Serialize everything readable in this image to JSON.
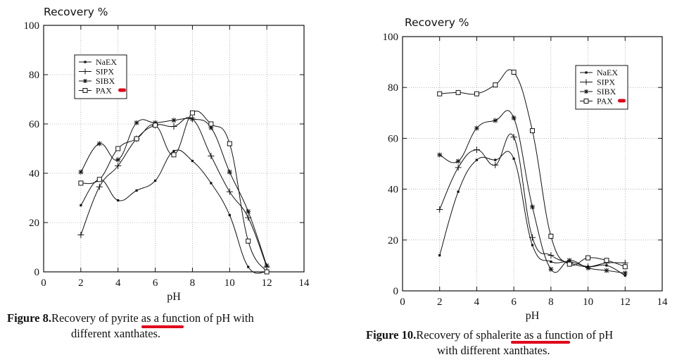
{
  "colors": {
    "line": "#111111",
    "grid": "#888888",
    "highlight": "#e0001b"
  },
  "figures": [
    {
      "caption_label": "Figure 8.",
      "caption_before": "Recovery of ",
      "caption_highlight": "pyrite",
      "caption_after": " as a function of pH with",
      "caption_line2": "different xanthates."
    },
    {
      "caption_label": "Figure 10.",
      "caption_before": "Recovery of ",
      "caption_highlight": "sphalerite",
      "caption_after": " as a function of pH",
      "caption_line2": "with different xanthates."
    }
  ],
  "chart_data": [
    {
      "type": "line",
      "title": "",
      "xlabel": "pH",
      "ylabel": "Recovery %",
      "xlim": [
        0,
        14
      ],
      "ylim": [
        0,
        100
      ],
      "xticks": [
        "0",
        "2",
        "4",
        "6",
        "8",
        "10",
        "12",
        "14"
      ],
      "yticks": [
        "0",
        "20",
        "40",
        "60",
        "80",
        "100"
      ],
      "grid": true,
      "legend_position": "top-left",
      "x": [
        2,
        3,
        4,
        5,
        6,
        7,
        8,
        9,
        10,
        11,
        12
      ],
      "series": [
        {
          "name": "NaEX",
          "marker": "dot",
          "values": [
            27,
            37.5,
            29,
            33,
            37,
            49,
            45,
            36,
            23,
            2,
            0
          ]
        },
        {
          "name": "SIPX",
          "marker": "plus",
          "values": [
            15,
            34.5,
            43,
            54,
            59.5,
            59,
            62,
            47,
            32.5,
            22,
            2
          ]
        },
        {
          "name": "SIBX",
          "marker": "asterisk",
          "values": [
            40.5,
            52,
            45.5,
            60.5,
            60.5,
            61.5,
            62,
            58.5,
            40.5,
            24.5,
            2.5
          ]
        },
        {
          "name": "PAX",
          "marker": "square",
          "values": [
            36,
            37.5,
            50,
            54,
            59.5,
            47.5,
            64.5,
            60,
            52,
            12.5,
            0
          ]
        }
      ]
    },
    {
      "type": "line",
      "title": "",
      "xlabel": "pH",
      "ylabel": "Recovery %",
      "xlim": [
        0,
        14
      ],
      "ylim": [
        0,
        100
      ],
      "xticks": [
        "0",
        "2",
        "4",
        "6",
        "8",
        "10",
        "12",
        "14"
      ],
      "yticks": [
        "0",
        "20",
        "40",
        "60",
        "80",
        "100"
      ],
      "grid": true,
      "legend_position": "top-right",
      "x": [
        2,
        3,
        4,
        5,
        6,
        7,
        8,
        9,
        10,
        11,
        12
      ],
      "series": [
        {
          "name": "NaEX",
          "marker": "dot",
          "values": [
            14,
            39,
            51.5,
            51.5,
            52,
            18,
            11.5,
            11.5,
            9.5,
            10,
            6
          ]
        },
        {
          "name": "SIPX",
          "marker": "plus",
          "values": [
            32,
            48.5,
            55.5,
            49.5,
            60.5,
            21,
            14,
            11,
            9.5,
            11,
            11
          ]
        },
        {
          "name": "SIBX",
          "marker": "asterisk",
          "values": [
            53.5,
            51,
            64,
            67,
            68,
            33,
            8.5,
            12,
            9,
            8,
            7
          ]
        },
        {
          "name": "PAX",
          "marker": "square",
          "values": [
            77.5,
            78,
            77.5,
            81,
            86,
            63,
            21.5,
            10.5,
            13,
            12,
            9.5
          ]
        }
      ]
    }
  ]
}
